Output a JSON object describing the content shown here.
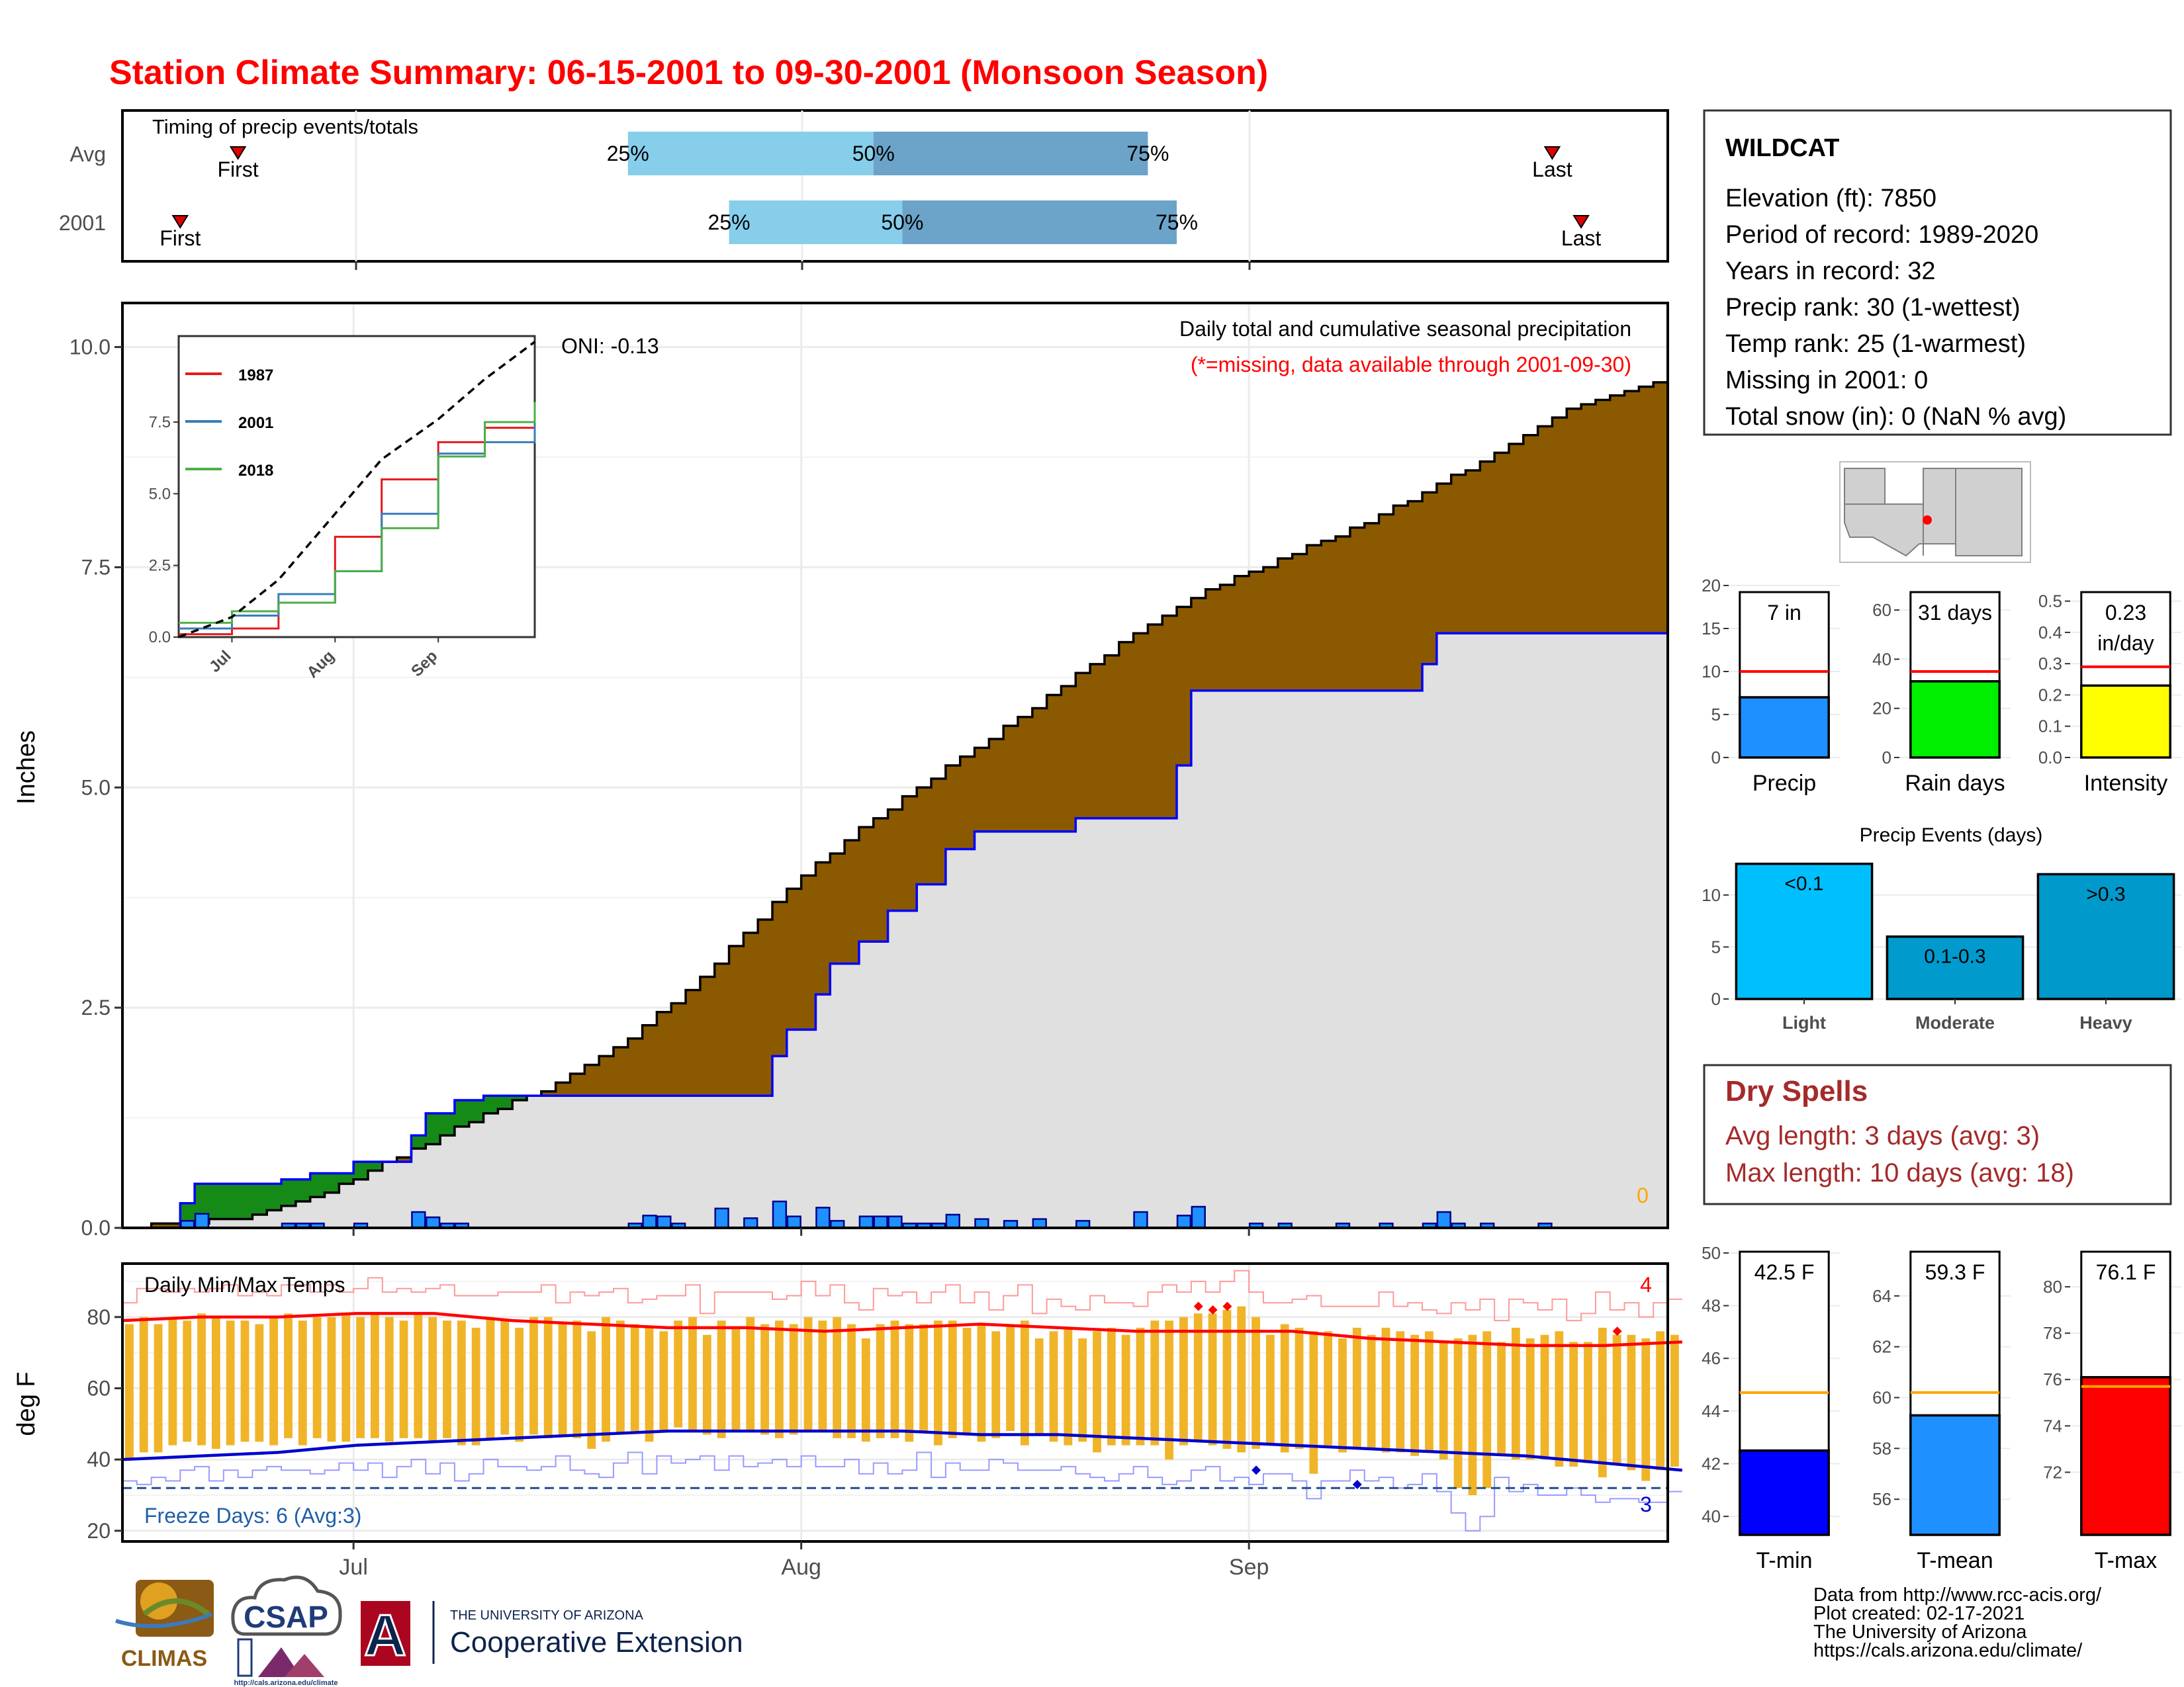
{
  "title": "Station Climate Summary: 06-15-2001 to 09-30-2001 (Monsoon Season)",
  "colors": {
    "title": "#ff0000",
    "brown": "#8b5a00",
    "green": "#168a16",
    "normal_fill": "#e0e0e0",
    "bar_blue": "#1e90ff",
    "line_blue": "#0000ff",
    "orange_bar": "#f0b428",
    "red": "#ff0000",
    "q_light": "#87ceeb",
    "q_dark": "#6ba3c9",
    "ev_light": "#00bfff",
    "ev_mod": "#009acd",
    "ev_heavy": "#0099cc",
    "dry_red": "#a52a2a",
    "orange_line": "#ffa500"
  },
  "timing": {
    "title": "Timing of precip events/totals",
    "row_labels": [
      "Avg",
      "2001"
    ],
    "first_label": "First",
    "last_label": "Last",
    "pct_labels": [
      "25%",
      "50%",
      "75%"
    ],
    "avg": {
      "first": "2001-06-23",
      "q25": "2001-07-20",
      "q50": "2001-08-06",
      "q75": "2001-08-25",
      "last": "2001-09-22"
    },
    "y2001": {
      "first": "2001-06-19",
      "q25": "2001-07-27",
      "q50": "2001-08-08",
      "q75": "2001-08-27",
      "last": "2001-09-24"
    }
  },
  "main": {
    "ylabel": "Inches",
    "title_line1": "Daily total and cumulative seasonal precipitation",
    "title_line2": "(*=missing, data available through 2001-09-30)",
    "oni": "ONI: -0.13",
    "snow_count": "0",
    "yticks": [
      "0.0",
      "2.5",
      "5.0",
      "7.5",
      "10.0"
    ],
    "xticks": [
      "Jul",
      "Aug",
      "Sep"
    ]
  },
  "inset": {
    "yticks": [
      "0.0",
      "2.5",
      "5.0",
      "7.5"
    ],
    "xticks": [
      "Jul",
      "Aug",
      "Sep"
    ],
    "legend": [
      "1987",
      "2001",
      "2018"
    ]
  },
  "temps": {
    "title": "Daily Min/Max Temps",
    "ylabel": "deg F",
    "yticks": [
      "20",
      "40",
      "60",
      "80"
    ],
    "xticks": [
      "Jul",
      "Aug",
      "Sep"
    ],
    "freeze": "Freeze Days: 6 (Avg:3)",
    "count_hot": "4",
    "count_cold": "3"
  },
  "info": {
    "station": "WILDCAT",
    "lines": [
      "Elevation (ft): 7850",
      "Period of record: 1989-2020",
      "Years in record: 32",
      "Precip rank: 30 (1-wettest)",
      "Temp rank: 25 (1-warmest)",
      "Missing in 2001: 0",
      "Total snow (in): 0 (NaN % avg)"
    ]
  },
  "mini_precip": {
    "panels": [
      {
        "label": "Precip",
        "value_text": "7 in",
        "yticks": [
          "0",
          "5",
          "10",
          "15",
          "20"
        ]
      },
      {
        "label": "Rain days",
        "value_text": "31 days",
        "yticks": [
          "0",
          "20",
          "40",
          "60"
        ]
      },
      {
        "label": "Intensity",
        "value_text": "0.23 in/day",
        "value_line1": "0.23",
        "value_line2": "in/day",
        "yticks": [
          "0.0",
          "0.1",
          "0.2",
          "0.3",
          "0.4",
          "0.5"
        ]
      }
    ]
  },
  "events": {
    "title": "Precip Events (days)",
    "yticks": [
      "0",
      "5",
      "10"
    ],
    "categories": [
      "Light",
      "Moderate",
      "Heavy"
    ],
    "bar_labels": [
      "<0.1",
      "0.1-0.3",
      ">0.3"
    ]
  },
  "dry": {
    "title": "Dry Spells",
    "line1": "Avg length: 3 days (avg: 3)",
    "line2": "Max length: 10 days (avg: 18)"
  },
  "temp_bars": {
    "panels": [
      {
        "label": "T-min",
        "value_text": "42.5 F",
        "yticks": [
          "40",
          "42",
          "44",
          "46",
          "48",
          "50"
        ]
      },
      {
        "label": "T-mean",
        "value_text": "59.3 F",
        "yticks": [
          "56",
          "58",
          "60",
          "62",
          "64"
        ]
      },
      {
        "label": "T-max",
        "value_text": "76.1 F",
        "yticks": [
          "72",
          "74",
          "76",
          "78",
          "80"
        ]
      }
    ]
  },
  "footer": {
    "lines": [
      "Data from http://www.rcc-acis.org/",
      "Plot created: 02-17-2021",
      "The University of Arizona",
      "https://cals.arizona.edu/climate/"
    ],
    "logos": {
      "climas": "CLIMAS",
      "csap": "CSAP",
      "csap_url": "http://cals.arizona.edu/climate",
      "ua_small": "THE UNIVERSITY OF ARIZONA",
      "ua_big": "Cooperative Extension",
      "ua_letter": "A"
    }
  },
  "chart_data": [
    {
      "type": "area",
      "title": "Daily total and cumulative seasonal precipitation",
      "ylabel": "Inches",
      "ylim": [
        0,
        10.5
      ],
      "x_range": [
        "2001-06-15",
        "2001-09-30"
      ],
      "daily_2001": {
        "dates": [
          "2001-06-19",
          "2001-06-20",
          "2001-06-26",
          "2001-06-27",
          "2001-06-28",
          "2001-07-01",
          "2001-07-05",
          "2001-07-06",
          "2001-07-07",
          "2001-07-08",
          "2001-07-20",
          "2001-07-21",
          "2001-07-22",
          "2001-07-23",
          "2001-07-26",
          "2001-07-28",
          "2001-07-30",
          "2001-07-31",
          "2001-08-02",
          "2001-08-03",
          "2001-08-05",
          "2001-08-06",
          "2001-08-07",
          "2001-08-08",
          "2001-08-09",
          "2001-08-10",
          "2001-08-11",
          "2001-08-13",
          "2001-08-15",
          "2001-08-17",
          "2001-08-20",
          "2001-08-24",
          "2001-08-27",
          "2001-08-28",
          "2001-09-01",
          "2001-09-03",
          "2001-09-07",
          "2001-09-10",
          "2001-09-13",
          "2001-09-14",
          "2001-09-15",
          "2001-09-17",
          "2001-09-21"
        ],
        "values": [
          0.08,
          0.16,
          0.05,
          0.05,
          0.05,
          0.05,
          0.18,
          0.12,
          0.05,
          0.05,
          0.05,
          0.14,
          0.13,
          0.05,
          0.22,
          0.11,
          0.3,
          0.13,
          0.23,
          0.08,
          0.13,
          0.13,
          0.13,
          0.05,
          0.05,
          0.05,
          0.15,
          0.1,
          0.08,
          0.1,
          0.08,
          0.18,
          0.14,
          0.24,
          0.05,
          0.05,
          0.05,
          0.05,
          0.05,
          0.18,
          0.05,
          0.05,
          0.05
        ]
      },
      "cumulative_2001": {
        "dates": [
          "2001-06-15",
          "2001-06-19",
          "2001-06-20",
          "2001-06-26",
          "2001-06-28",
          "2001-07-01",
          "2001-07-05",
          "2001-07-06",
          "2001-07-08",
          "2001-07-10",
          "2001-07-30",
          "2001-07-31",
          "2001-08-02",
          "2001-08-03",
          "2001-08-05",
          "2001-08-07",
          "2001-08-09",
          "2001-08-11",
          "2001-08-13",
          "2001-08-20",
          "2001-08-27",
          "2001-08-28",
          "2001-09-13",
          "2001-09-14",
          "2001-09-30"
        ],
        "values": [
          0,
          0.28,
          0.5,
          0.55,
          0.62,
          0.75,
          1.05,
          1.3,
          1.45,
          1.5,
          1.95,
          2.25,
          2.65,
          3.0,
          3.25,
          3.6,
          3.9,
          4.3,
          4.5,
          4.65,
          5.25,
          6.1,
          6.4,
          6.75,
          6.95
        ]
      },
      "cumulative_avg": {
        "dates": [
          "2001-06-15",
          "2001-06-20",
          "2001-06-25",
          "2001-06-30",
          "2001-07-05",
          "2001-07-10",
          "2001-07-15",
          "2001-07-20",
          "2001-07-25",
          "2001-07-30",
          "2001-08-04",
          "2001-08-09",
          "2001-08-14",
          "2001-08-19",
          "2001-08-24",
          "2001-08-29",
          "2001-09-03",
          "2001-09-08",
          "2001-09-13",
          "2001-09-18",
          "2001-09-23",
          "2001-09-30"
        ],
        "values": [
          0,
          0.05,
          0.15,
          0.45,
          0.85,
          1.25,
          1.6,
          2.1,
          2.75,
          3.6,
          4.35,
          4.95,
          5.5,
          6.1,
          6.7,
          7.2,
          7.55,
          7.9,
          8.3,
          8.75,
          9.25,
          9.6
        ]
      },
      "inset_series": [
        {
          "name": "1987",
          "x": [
            "06-15",
            "07-01",
            "07-15",
            "08-01",
            "08-15",
            "09-01",
            "09-15",
            "09-30"
          ],
          "values": [
            0.1,
            0.3,
            1.2,
            3.5,
            5.5,
            6.8,
            7.3,
            7.7
          ]
        },
        {
          "name": "2001",
          "x": [
            "06-15",
            "07-01",
            "07-15",
            "08-01",
            "08-15",
            "09-01",
            "09-15",
            "09-30"
          ],
          "values": [
            0.3,
            0.75,
            1.5,
            2.3,
            4.3,
            6.4,
            6.8,
            7.5
          ]
        },
        {
          "name": "2018",
          "x": [
            "06-15",
            "07-01",
            "07-15",
            "08-01",
            "08-15",
            "09-01",
            "09-15",
            "09-30"
          ],
          "values": [
            0.5,
            0.9,
            1.2,
            2.3,
            3.8,
            6.3,
            7.5,
            8.2
          ]
        },
        {
          "name": "avg",
          "x": [
            "06-15",
            "07-01",
            "07-15",
            "08-01",
            "08-15",
            "09-01",
            "09-15",
            "09-30"
          ],
          "values": [
            0,
            0.7,
            2.0,
            4.3,
            6.2,
            7.6,
            9.0,
            10.3
          ]
        }
      ]
    },
    {
      "type": "bar",
      "title": "Daily Min/Max Temps",
      "ylabel": "deg F",
      "ylim": [
        20,
        95
      ],
      "x_range": [
        "2001-06-15",
        "2001-09-30"
      ],
      "dates_start": "2001-06-15",
      "tmax": [
        78,
        80,
        78,
        80,
        79,
        81,
        80,
        79,
        79,
        78,
        80,
        81,
        79,
        80,
        80,
        81,
        80,
        81,
        80,
        79,
        81,
        80,
        79,
        79,
        77,
        80,
        79,
        77,
        80,
        80,
        78,
        79,
        76,
        80,
        79,
        78,
        77,
        76,
        79,
        80,
        75,
        79,
        77,
        80,
        78,
        79,
        78,
        80,
        79,
        80,
        78,
        74,
        78,
        79,
        78,
        78,
        79,
        79,
        77,
        78,
        76,
        78,
        79,
        74,
        76,
        77,
        74,
        76,
        77,
        75,
        77,
        79,
        79,
        80,
        81,
        81,
        82,
        83,
        80,
        75,
        78,
        77,
        76,
        76,
        74,
        77,
        75,
        77,
        76,
        75,
        76,
        73,
        74,
        75,
        76,
        73,
        77,
        74,
        75,
        76,
        73,
        73,
        77,
        75,
        75,
        74,
        76,
        75
      ],
      "tmin": [
        40,
        42,
        42,
        44,
        45,
        44,
        43,
        44,
        45,
        45,
        44,
        46,
        44,
        46,
        45,
        45,
        46,
        46,
        45,
        46,
        46,
        45,
        46,
        44,
        44,
        46,
        47,
        45,
        47,
        46,
        47,
        46,
        43,
        45,
        47,
        48,
        45,
        48,
        49,
        48,
        47,
        46,
        48,
        48,
        47,
        46,
        47,
        48,
        48,
        46,
        46,
        45,
        46,
        46,
        45,
        48,
        44,
        46,
        47,
        45,
        46,
        48,
        44,
        47,
        45,
        44,
        45,
        42,
        44,
        44,
        44,
        44,
        40,
        44,
        45,
        44,
        43,
        42,
        43,
        44,
        42,
        43,
        36,
        44,
        42,
        43,
        43,
        42,
        42,
        41,
        42,
        40,
        32,
        30,
        32,
        41,
        40,
        40,
        40,
        38,
        38,
        39,
        35,
        39,
        37,
        34,
        37,
        38
      ],
      "avg_max": [
        79,
        80,
        80,
        81,
        81,
        79,
        78,
        77,
        77,
        76,
        77,
        78,
        77,
        76,
        76,
        76,
        74,
        73,
        72,
        72,
        73
      ],
      "avg_min": [
        40,
        41,
        42,
        44,
        45,
        46,
        47,
        48,
        48,
        48,
        48,
        47,
        47,
        46,
        45,
        44,
        43,
        42,
        41,
        39,
        37
      ]
    },
    {
      "type": "bar",
      "title": "Precip",
      "categories": [
        "Precip"
      ],
      "values": [
        7.0
      ],
      "reference": 10.0,
      "ylim": [
        0,
        20
      ]
    },
    {
      "type": "bar",
      "title": "Rain days",
      "categories": [
        "Rain days"
      ],
      "values": [
        31
      ],
      "reference": 35,
      "ylim": [
        0,
        70
      ]
    },
    {
      "type": "bar",
      "title": "Intensity",
      "categories": [
        "Intensity"
      ],
      "values": [
        0.23
      ],
      "reference": 0.29,
      "ylim": [
        0,
        0.55
      ]
    },
    {
      "type": "bar",
      "title": "Precip Events (days)",
      "categories": [
        "Light",
        "Moderate",
        "Heavy"
      ],
      "values": [
        13,
        6,
        12
      ],
      "ylim": [
        0,
        14
      ]
    },
    {
      "type": "bar",
      "title": "T-min",
      "categories": [
        "T-min"
      ],
      "values": [
        42.5
      ],
      "reference": 44.7,
      "ylim": [
        39.3,
        50.3
      ]
    },
    {
      "type": "bar",
      "title": "T-mean",
      "categories": [
        "T-mean"
      ],
      "values": [
        59.3
      ],
      "reference": 60.2,
      "ylim": [
        54.6,
        66.0
      ]
    },
    {
      "type": "bar",
      "title": "T-max",
      "categories": [
        "T-max"
      ],
      "values": [
        76.1
      ],
      "reference": 75.7,
      "ylim": [
        69.3,
        81.8
      ]
    }
  ]
}
